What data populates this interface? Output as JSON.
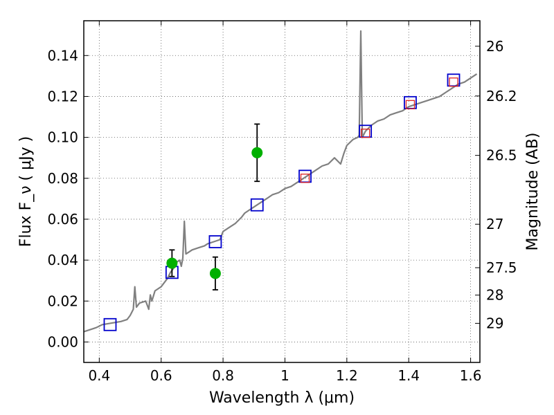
{
  "chart_data": {
    "type": "scatter",
    "title": "",
    "xlabel": "Wavelength  λ (μm)",
    "ylabel": "Flux  F_ν  ( μJy )",
    "ylabel_right": "Magnitude (AB)",
    "xlim": [
      0.35,
      1.63
    ],
    "ylim": [
      -0.01,
      0.157
    ],
    "x_ticks": [
      "0.4",
      "0.6",
      "0.8",
      "1",
      "1.2",
      "1.4",
      "1.6"
    ],
    "y_ticks": [
      "0.00",
      "0.02",
      "0.04",
      "0.06",
      "0.08",
      "0.10",
      "0.12",
      "0.14"
    ],
    "magnitude_ticks": [
      "26",
      "26.2",
      "26.5",
      "27",
      "27.5",
      "28",
      "29"
    ],
    "grid": true,
    "colors": {
      "spectrum": "#808080",
      "blue_squares": "#0000cc",
      "red_squares": "#dd2222",
      "green_points": "#00b000",
      "errorbars": "#000000"
    },
    "series": [
      {
        "type": "line",
        "x": [
          0.35,
          0.37,
          0.39,
          0.41,
          0.43,
          0.45,
          0.47,
          0.49,
          0.5,
          0.51,
          0.515,
          0.52,
          0.53,
          0.55,
          0.56,
          0.565,
          0.57,
          0.58,
          0.6,
          0.62,
          0.63,
          0.64,
          0.65,
          0.66,
          0.665,
          0.67,
          0.675,
          0.68,
          0.69,
          0.7,
          0.72,
          0.74,
          0.75,
          0.77,
          0.79,
          0.8,
          0.82,
          0.84,
          0.86,
          0.87,
          0.88,
          0.9,
          0.92,
          0.94,
          0.96,
          0.98,
          1.0,
          1.02,
          1.04,
          1.06,
          1.08,
          1.1,
          1.12,
          1.14,
          1.16,
          1.18,
          1.19,
          1.2,
          1.22,
          1.235,
          1.24,
          1.245,
          1.25,
          1.26,
          1.28,
          1.3,
          1.32,
          1.34,
          1.36,
          1.38,
          1.4,
          1.42,
          1.44,
          1.46,
          1.48,
          1.5,
          1.52,
          1.54,
          1.56,
          1.58,
          1.6,
          1.62
        ],
        "y": [
          0.005,
          0.006,
          0.007,
          0.0085,
          0.009,
          0.0095,
          0.01,
          0.011,
          0.013,
          0.016,
          0.027,
          0.017,
          0.019,
          0.02,
          0.016,
          0.023,
          0.02,
          0.025,
          0.027,
          0.031,
          0.034,
          0.036,
          0.039,
          0.04,
          0.037,
          0.041,
          0.059,
          0.043,
          0.044,
          0.045,
          0.046,
          0.047,
          0.048,
          0.049,
          0.05,
          0.054,
          0.056,
          0.058,
          0.061,
          0.063,
          0.064,
          0.066,
          0.068,
          0.07,
          0.072,
          0.073,
          0.075,
          0.076,
          0.078,
          0.08,
          0.082,
          0.084,
          0.086,
          0.087,
          0.09,
          0.087,
          0.092,
          0.096,
          0.099,
          0.1,
          0.101,
          0.152,
          0.1,
          0.103,
          0.106,
          0.108,
          0.109,
          0.111,
          0.112,
          0.113,
          0.115,
          0.116,
          0.117,
          0.118,
          0.119,
          0.12,
          0.122,
          0.124,
          0.126,
          0.127,
          0.129,
          0.131
        ]
      },
      {
        "type": "scatter",
        "marker": "open-square-blue",
        "x": [
          0.435,
          0.635,
          0.775,
          0.91,
          1.065,
          1.26,
          1.405,
          1.545
        ],
        "y": [
          0.0085,
          0.034,
          0.049,
          0.067,
          0.081,
          0.103,
          0.117,
          0.128
        ]
      },
      {
        "type": "scatter",
        "marker": "open-square-red",
        "x": [
          1.065,
          1.26,
          1.405,
          1.545
        ],
        "y": [
          0.08,
          0.102,
          0.116,
          0.127
        ]
      },
      {
        "type": "scatter",
        "marker": "filled-circle-green",
        "x": [
          0.635,
          0.775,
          0.91
        ],
        "y": [
          0.0385,
          0.0335,
          0.0925
        ],
        "yerr": [
          0.0065,
          0.008,
          0.014
        ]
      }
    ]
  }
}
